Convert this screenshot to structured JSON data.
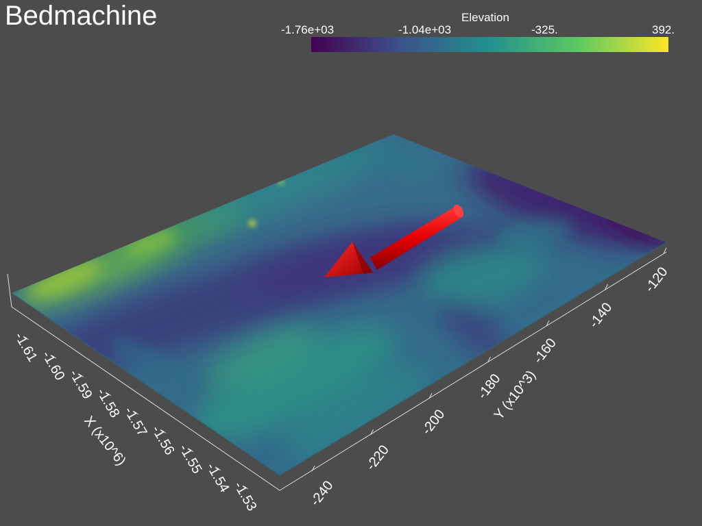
{
  "window": {
    "title": "Bedmachine"
  },
  "colorbar": {
    "title": "Elevation",
    "labels": [
      "-1.76e+03",
      "-1.04e+03",
      "-325.",
      "392."
    ],
    "colormap": "viridis",
    "colors": [
      "#440154",
      "#3b528b",
      "#21918c",
      "#5ec962",
      "#fde725"
    ]
  },
  "axes": {
    "x_title": "X (x10^6)",
    "x_ticks": [
      "-1.61",
      "-1.60",
      "-1.59",
      "-1.58",
      "-1.57",
      "-1.56",
      "-1.55",
      "-1.54",
      "-1.53"
    ],
    "y_title": "Y (x10^3)",
    "y_ticks": [
      "-240",
      "-220",
      "-200",
      "-180",
      "-160",
      "-140",
      "-120"
    ]
  },
  "surface": {
    "name": "bedrock-elevation-surface"
  },
  "arrow": {
    "name": "flow-direction-arrow",
    "color": "#e00000"
  }
}
